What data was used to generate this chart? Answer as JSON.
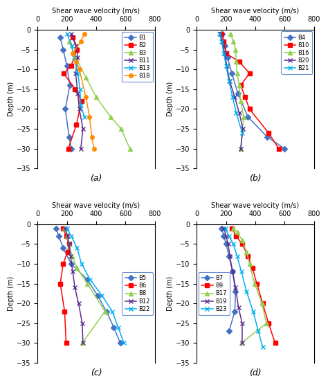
{
  "xlabel": "Shear wave velocity (m/s)",
  "ylabel": "Depth (m)",
  "xlim": [
    0,
    800
  ],
  "ylim": [
    -35,
    0
  ],
  "yticks": [
    0,
    -5,
    -10,
    -15,
    -20,
    -25,
    -30,
    -35
  ],
  "xticks": [
    0,
    200,
    400,
    600,
    800
  ],
  "subplot_a": {
    "label": "(a)",
    "legend_loc": "upper right",
    "series": [
      {
        "name": "B1",
        "color": "#4472C4",
        "marker": "D",
        "markersize": 4,
        "linestyle": "-",
        "depth": [
          -2,
          -5,
          -9,
          -14,
          -20,
          -27,
          -30
        ],
        "vel": [
          155,
          175,
          200,
          220,
          190,
          215,
          230
        ]
      },
      {
        "name": "B2",
        "color": "#FF0000",
        "marker": "s",
        "markersize": 4,
        "linestyle": "-",
        "depth": [
          -2,
          -5,
          -9,
          -11,
          -15,
          -18,
          -24,
          -30
        ],
        "vel": [
          240,
          270,
          230,
          180,
          255,
          300,
          265,
          210
        ]
      },
      {
        "name": "B3",
        "color": "#92D050",
        "marker": "^",
        "markersize": 5,
        "linestyle": "-",
        "depth": [
          -3,
          -7,
          -12,
          -17,
          -22,
          -25,
          -30
        ],
        "vel": [
          215,
          260,
          330,
          400,
          500,
          570,
          630
        ]
      },
      {
        "name": "B11",
        "color": "#5B2C8D",
        "marker": "x",
        "markersize": 5,
        "linestyle": "-",
        "depth": [
          -1,
          -4,
          -7,
          -11,
          -16,
          -20,
          -25,
          -30
        ],
        "vel": [
          230,
          265,
          275,
          260,
          275,
          285,
          310,
          295
        ]
      },
      {
        "name": "B13",
        "color": "#00B0F0",
        "marker": "x",
        "markersize": 5,
        "linestyle": "-",
        "depth": [
          -1,
          -4,
          -7,
          -11,
          -15,
          -19,
          -22
        ],
        "vel": [
          200,
          235,
          250,
          275,
          290,
          295,
          320
        ]
      },
      {
        "name": "B18",
        "color": "#FF8C00",
        "marker": "o",
        "markersize": 4,
        "linestyle": "-",
        "depth": [
          -1,
          -3,
          -6,
          -8,
          -10,
          -17,
          -22,
          -27,
          -30
        ],
        "vel": [
          320,
          295,
          240,
          265,
          285,
          330,
          355,
          370,
          385
        ]
      }
    ]
  },
  "subplot_b": {
    "label": "(b)",
    "legend_loc": "upper right",
    "series": [
      {
        "name": "B4",
        "color": "#4472C4",
        "marker": "D",
        "markersize": 4,
        "linestyle": "-",
        "depth": [
          -1,
          -4,
          -7,
          -11,
          -16,
          -22,
          -27,
          -30
        ],
        "vel": [
          175,
          190,
          210,
          240,
          280,
          350,
          480,
          600
        ]
      },
      {
        "name": "B10",
        "color": "#FF0000",
        "marker": "s",
        "markersize": 4,
        "linestyle": "-",
        "depth": [
          -1,
          -3,
          -6,
          -8,
          -11,
          -14,
          -17,
          -20,
          -26,
          -30
        ],
        "vel": [
          170,
          185,
          200,
          290,
          360,
          300,
          330,
          360,
          490,
          560
        ]
      },
      {
        "name": "B16",
        "color": "#92D050",
        "marker": "^",
        "markersize": 5,
        "linestyle": "-",
        "depth": [
          -1,
          -3,
          -5,
          -8,
          -11,
          -14,
          -18,
          -22,
          -30
        ],
        "vel": [
          230,
          250,
          265,
          270,
          275,
          290,
          300,
          320,
          300
        ]
      },
      {
        "name": "B20",
        "color": "#5B2C8D",
        "marker": "x",
        "markersize": 5,
        "linestyle": "-",
        "depth": [
          -1,
          -3,
          -6,
          -9,
          -13,
          -17,
          -21,
          -25,
          -30
        ],
        "vel": [
          160,
          175,
          190,
          205,
          225,
          260,
          290,
          315,
          300
        ]
      },
      {
        "name": "B21",
        "color": "#00B0F0",
        "marker": "x",
        "markersize": 5,
        "linestyle": "-",
        "depth": [
          -1,
          -3,
          -6,
          -9,
          -13,
          -17,
          -21,
          -26
        ],
        "vel": [
          155,
          170,
          185,
          200,
          220,
          245,
          270,
          310
        ]
      }
    ]
  },
  "subplot_c": {
    "label": "(c)",
    "legend_loc": "center right",
    "series": [
      {
        "name": "B5",
        "color": "#4472C4",
        "marker": "D",
        "markersize": 4,
        "linestyle": "-",
        "depth": [
          -1,
          -3,
          -6,
          -10,
          -14,
          -18,
          -22,
          -26,
          -30
        ],
        "vel": [
          125,
          145,
          175,
          230,
          340,
          410,
          470,
          520,
          565
        ]
      },
      {
        "name": "B6",
        "color": "#FF0000",
        "marker": "s",
        "markersize": 4,
        "linestyle": "-",
        "depth": [
          -1,
          -3,
          -5,
          -7,
          -10,
          -15,
          -22,
          -30
        ],
        "vel": [
          175,
          195,
          215,
          205,
          175,
          155,
          185,
          195
        ]
      },
      {
        "name": "B8",
        "color": "#92D050",
        "marker": "^",
        "markersize": 5,
        "linestyle": "-",
        "depth": [
          -1,
          -3,
          -5,
          -8,
          -11,
          -15,
          -22,
          -30
        ],
        "vel": [
          185,
          200,
          215,
          235,
          270,
          340,
          460,
          305
        ]
      },
      {
        "name": "B12",
        "color": "#5B2C8D",
        "marker": "x",
        "markersize": 5,
        "linestyle": "-",
        "depth": [
          -1,
          -3,
          -5,
          -8,
          -12,
          -16,
          -20,
          -25,
          -30
        ],
        "vel": [
          190,
          205,
          215,
          225,
          240,
          255,
          280,
          305,
          310
        ]
      },
      {
        "name": "B22",
        "color": "#00B0F0",
        "marker": "x",
        "markersize": 5,
        "linestyle": "-",
        "depth": [
          -1,
          -3,
          -6,
          -10,
          -14,
          -18,
          -22,
          -26,
          -30
        ],
        "vel": [
          200,
          230,
          270,
          300,
          360,
          440,
          510,
          550,
          590
        ]
      }
    ]
  },
  "subplot_d": {
    "label": "(d)",
    "legend_loc": "center left",
    "series": [
      {
        "name": "B7",
        "color": "#4472C4",
        "marker": "D",
        "markersize": 4,
        "linestyle": "-",
        "depth": [
          -1,
          -3,
          -5,
          -8,
          -12,
          -17,
          -22,
          -27
        ],
        "vel": [
          170,
          185,
          200,
          220,
          245,
          265,
          260,
          220
        ]
      },
      {
        "name": "B9",
        "color": "#FF0000",
        "marker": "s",
        "markersize": 4,
        "linestyle": "-",
        "depth": [
          -1,
          -3,
          -5,
          -8,
          -11,
          -15,
          -20,
          -25,
          -30
        ],
        "vel": [
          240,
          270,
          310,
          350,
          380,
          410,
          450,
          490,
          535
        ]
      },
      {
        "name": "B17",
        "color": "#92D050",
        "marker": "^",
        "markersize": 5,
        "linestyle": "-",
        "depth": [
          -1,
          -2,
          -4,
          -7,
          -10,
          -15,
          -20,
          -25,
          -30
        ],
        "vel": [
          250,
          275,
          310,
          340,
          360,
          395,
          445,
          475,
          305
        ]
      },
      {
        "name": "B19",
        "color": "#5B2C8D",
        "marker": "x",
        "markersize": 5,
        "linestyle": "-",
        "depth": [
          -1,
          -3,
          -5,
          -8,
          -12,
          -16,
          -21,
          -25,
          -30
        ],
        "vel": [
          185,
          200,
          215,
          225,
          245,
          265,
          285,
          310,
          310
        ]
      },
      {
        "name": "B23",
        "color": "#00B0F0",
        "marker": "x",
        "markersize": 5,
        "linestyle": "-",
        "depth": [
          -1,
          -3,
          -5,
          -8,
          -12,
          -17,
          -22,
          -27,
          -31
        ],
        "vel": [
          195,
          220,
          250,
          275,
          305,
          340,
          385,
          420,
          450
        ]
      }
    ]
  }
}
